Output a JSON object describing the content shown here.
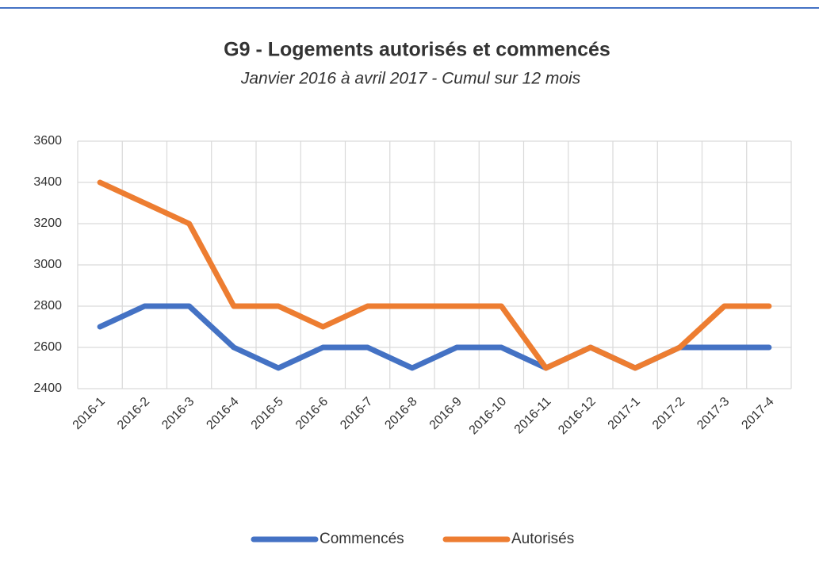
{
  "chart_data": {
    "type": "line",
    "title": "G9 - Logements autorisés et commencés",
    "subtitle": "Janvier 2016 à avril 2017 - Cumul sur 12 mois",
    "categories": [
      "2016-1",
      "2016-2",
      "2016-3",
      "2016-4",
      "2016-5",
      "2016-6",
      "2016-7",
      "2016-8",
      "2016-9",
      "2016-10",
      "2016-11",
      "2016-12",
      "2017-1",
      "2017-2",
      "2017-3",
      "2017-4"
    ],
    "series": [
      {
        "name": "Commencés",
        "color": "#4472c4",
        "values": [
          2700,
          2800,
          2800,
          2600,
          2500,
          2600,
          2600,
          2500,
          2600,
          2600,
          2500,
          2600,
          2500,
          2600,
          2600,
          2600
        ]
      },
      {
        "name": "Autorisés",
        "color": "#ed7d31",
        "values": [
          3400,
          3300,
          3200,
          2800,
          2800,
          2700,
          2800,
          2800,
          2800,
          2800,
          2500,
          2600,
          2500,
          2600,
          2800,
          2800
        ]
      }
    ],
    "ylim": [
      2400,
      3600
    ],
    "yticks": [
      2400,
      2600,
      2800,
      3000,
      3200,
      3400,
      3600
    ],
    "grid": true,
    "legend": "bottom"
  }
}
